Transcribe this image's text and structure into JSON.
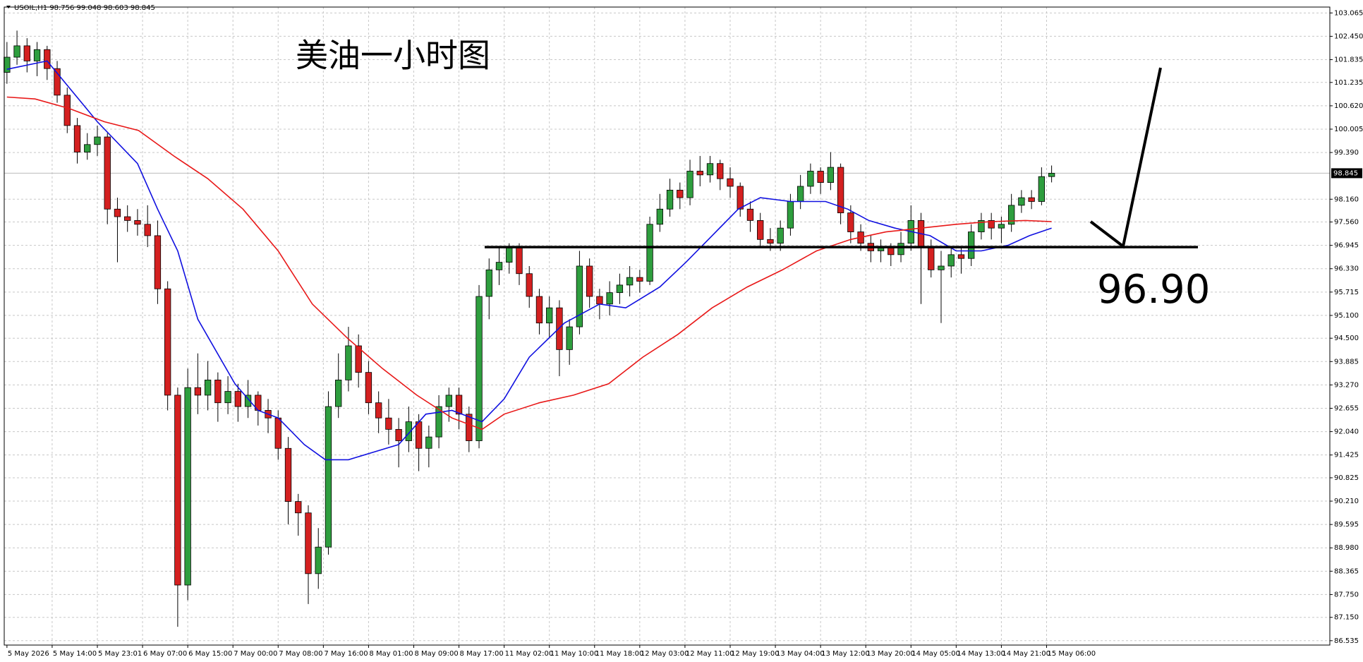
{
  "chart_data": {
    "type": "candlestick",
    "symbol": "USOIL,H1",
    "title": "美油一小时图",
    "annotation": {
      "value": 96.9,
      "label": "96.90"
    },
    "up_color": "#2e9e3e",
    "down_color": "#d42020",
    "grid": true,
    "candles": [
      [
        101.5,
        102.3,
        101.2,
        101.9
      ],
      [
        101.9,
        102.6,
        101.7,
        102.2
      ],
      [
        102.2,
        102.4,
        101.5,
        101.8
      ],
      [
        101.8,
        102.3,
        101.4,
        102.1
      ],
      [
        102.1,
        102.2,
        101.3,
        101.6
      ],
      [
        101.6,
        101.8,
        100.7,
        100.9
      ],
      [
        100.9,
        101.1,
        99.9,
        100.1
      ],
      [
        100.1,
        100.3,
        99.1,
        99.4
      ],
      [
        99.4,
        99.9,
        99.2,
        99.6
      ],
      [
        99.6,
        100.1,
        99.3,
        99.8
      ],
      [
        99.8,
        99.9,
        97.5,
        97.9
      ],
      [
        97.9,
        98.2,
        96.5,
        97.7
      ],
      [
        97.7,
        98.0,
        97.3,
        97.6
      ],
      [
        97.6,
        97.9,
        97.2,
        97.5
      ],
      [
        97.5,
        98.0,
        96.9,
        97.2
      ],
      [
        97.2,
        97.6,
        95.4,
        95.8
      ],
      [
        95.8,
        96.0,
        92.6,
        93.0
      ],
      [
        93.0,
        93.2,
        86.9,
        88.0
      ],
      [
        88.0,
        93.7,
        87.6,
        93.2
      ],
      [
        93.2,
        94.1,
        92.5,
        93.0
      ],
      [
        93.0,
        93.9,
        92.6,
        93.4
      ],
      [
        93.4,
        93.6,
        92.3,
        92.8
      ],
      [
        92.8,
        93.5,
        92.5,
        93.1
      ],
      [
        93.1,
        93.3,
        92.3,
        92.7
      ],
      [
        92.7,
        93.4,
        92.4,
        93.0
      ],
      [
        93.0,
        93.1,
        92.2,
        92.6
      ],
      [
        92.6,
        92.9,
        92.0,
        92.4
      ],
      [
        92.4,
        92.6,
        91.3,
        91.6
      ],
      [
        91.6,
        91.9,
        89.6,
        90.2
      ],
      [
        90.2,
        90.4,
        89.3,
        89.9
      ],
      [
        89.9,
        90.1,
        87.5,
        88.3
      ],
      [
        88.3,
        89.5,
        87.9,
        89.0
      ],
      [
        89.0,
        93.1,
        88.8,
        92.7
      ],
      [
        92.7,
        94.1,
        92.4,
        93.4
      ],
      [
        93.4,
        94.8,
        93.1,
        94.3
      ],
      [
        94.3,
        94.6,
        93.2,
        93.6
      ],
      [
        93.6,
        93.9,
        92.5,
        92.8
      ],
      [
        92.8,
        93.1,
        92.0,
        92.4
      ],
      [
        92.4,
        92.9,
        91.7,
        92.1
      ],
      [
        92.1,
        92.4,
        91.1,
        91.8
      ],
      [
        91.8,
        92.7,
        91.5,
        92.3
      ],
      [
        92.3,
        92.5,
        91.0,
        91.6
      ],
      [
        91.6,
        92.2,
        91.1,
        91.9
      ],
      [
        91.9,
        93.0,
        91.6,
        92.7
      ],
      [
        92.7,
        93.2,
        92.3,
        93.0
      ],
      [
        93.0,
        93.2,
        92.1,
        92.5
      ],
      [
        92.5,
        92.7,
        91.5,
        91.8
      ],
      [
        91.8,
        95.9,
        91.6,
        95.6
      ],
      [
        95.6,
        96.6,
        95.0,
        96.3
      ],
      [
        96.3,
        96.9,
        95.9,
        96.5
      ],
      [
        96.5,
        97.0,
        96.2,
        96.9
      ],
      [
        96.9,
        97.0,
        95.9,
        96.2
      ],
      [
        96.2,
        96.4,
        95.3,
        95.6
      ],
      [
        95.6,
        95.8,
        94.6,
        94.9
      ],
      [
        94.9,
        95.6,
        94.5,
        95.3
      ],
      [
        95.3,
        95.5,
        93.5,
        94.2
      ],
      [
        94.2,
        95.0,
        93.8,
        94.8
      ],
      [
        94.8,
        96.8,
        94.6,
        96.4
      ],
      [
        96.4,
        96.6,
        95.3,
        95.6
      ],
      [
        95.6,
        95.8,
        95.0,
        95.4
      ],
      [
        95.4,
        96.0,
        95.1,
        95.7
      ],
      [
        95.7,
        96.2,
        95.4,
        95.9
      ],
      [
        95.9,
        96.4,
        95.6,
        96.1
      ],
      [
        96.1,
        96.3,
        95.7,
        96.0
      ],
      [
        96.0,
        97.7,
        95.9,
        97.5
      ],
      [
        97.5,
        98.3,
        97.3,
        97.9
      ],
      [
        97.9,
        98.7,
        97.7,
        98.4
      ],
      [
        98.4,
        98.6,
        97.9,
        98.2
      ],
      [
        98.2,
        99.2,
        98.0,
        98.9
      ],
      [
        98.9,
        99.3,
        98.5,
        98.8
      ],
      [
        98.8,
        99.3,
        98.6,
        99.1
      ],
      [
        99.1,
        99.2,
        98.4,
        98.7
      ],
      [
        98.7,
        99.0,
        98.2,
        98.5
      ],
      [
        98.5,
        98.6,
        97.7,
        97.9
      ],
      [
        97.9,
        98.1,
        97.3,
        97.6
      ],
      [
        97.6,
        97.8,
        96.9,
        97.1
      ],
      [
        97.1,
        97.4,
        96.8,
        97.0
      ],
      [
        97.0,
        97.6,
        96.8,
        97.4
      ],
      [
        97.4,
        98.3,
        97.2,
        98.1
      ],
      [
        98.1,
        98.8,
        97.9,
        98.5
      ],
      [
        98.5,
        99.1,
        98.3,
        98.9
      ],
      [
        98.9,
        99.0,
        98.3,
        98.6
      ],
      [
        98.6,
        99.4,
        98.4,
        99.0
      ],
      [
        99.0,
        99.1,
        97.5,
        97.8
      ],
      [
        97.8,
        98.0,
        97.0,
        97.3
      ],
      [
        97.3,
        97.5,
        96.8,
        97.0
      ],
      [
        97.0,
        97.2,
        96.5,
        96.8
      ],
      [
        96.8,
        97.1,
        96.5,
        96.9
      ],
      [
        96.9,
        97.0,
        96.4,
        96.7
      ],
      [
        96.7,
        97.3,
        96.5,
        97.0
      ],
      [
        97.0,
        98.0,
        96.8,
        97.6
      ],
      [
        97.6,
        97.8,
        95.4,
        96.9
      ],
      [
        96.9,
        97.1,
        96.1,
        96.3
      ],
      [
        96.3,
        96.8,
        94.9,
        96.4
      ],
      [
        96.4,
        96.9,
        96.1,
        96.7
      ],
      [
        96.7,
        96.9,
        96.2,
        96.6
      ],
      [
        96.6,
        97.5,
        96.4,
        97.3
      ],
      [
        97.3,
        97.8,
        97.1,
        97.6
      ],
      [
        97.6,
        97.8,
        97.1,
        97.4
      ],
      [
        97.4,
        97.7,
        97.0,
        97.5
      ],
      [
        97.5,
        98.3,
        97.3,
        98.0
      ],
      [
        98.0,
        98.4,
        97.8,
        98.2
      ],
      [
        98.2,
        98.4,
        97.9,
        98.1
      ],
      [
        98.1,
        99.0,
        98.0,
        98.756
      ],
      [
        98.756,
        99.048,
        98.603,
        98.845
      ]
    ],
    "series": [
      {
        "color": "#1010e0",
        "x": [
          0,
          4,
          9,
          13,
          15,
          17,
          19,
          22.7,
          25,
          27,
          29.6,
          31.7,
          34,
          36.5,
          39,
          41.7,
          44.3,
          47.3,
          49.5,
          52,
          55.5,
          59,
          61.6,
          65,
          67.6,
          70.2,
          72.8,
          75,
          78,
          81.5,
          83.7,
          85.8,
          88.4,
          91.9,
          94.5,
          97,
          99.7,
          101.8,
          104
        ],
        "values": [
          101.58,
          101.8,
          100.2,
          99.1,
          97.9,
          96.8,
          95.0,
          93.3,
          92.6,
          92.4,
          91.7,
          91.3,
          91.3,
          91.5,
          91.7,
          92.5,
          92.6,
          92.3,
          92.9,
          94.0,
          94.9,
          95.4,
          95.3,
          95.85,
          96.5,
          97.2,
          97.9,
          98.2,
          98.1,
          98.1,
          97.9,
          97.6,
          97.4,
          97.2,
          96.8,
          96.8,
          96.95,
          97.2,
          97.4
        ]
      },
      {
        "color": "#e81818",
        "x": [
          0,
          2.8,
          6.2,
          9.7,
          13.1,
          16.6,
          20,
          23.5,
          27,
          30.4,
          33.9,
          37.4,
          40.8,
          44.3,
          47.3,
          49.5,
          53,
          56.4,
          59.9,
          63.3,
          66.8,
          70.2,
          73.7,
          77.2,
          80.6,
          84,
          87.5,
          91,
          94.5,
          97.9,
          101.4,
          104
        ],
        "values": [
          100.85,
          100.8,
          100.55,
          100.2,
          99.97,
          99.3,
          98.7,
          97.9,
          96.8,
          95.4,
          94.5,
          93.7,
          93.0,
          92.4,
          92.1,
          92.5,
          92.8,
          93.0,
          93.3,
          94.0,
          94.6,
          95.3,
          95.85,
          96.3,
          96.8,
          97.1,
          97.3,
          97.4,
          97.5,
          97.57,
          97.6,
          97.57
        ]
      }
    ],
    "xlim": [
      -0.27,
      131.7
    ],
    "xticks": [
      {
        "value": 0,
        "label": "5 May 2026"
      },
      {
        "value": 4.5,
        "label": "5 May 14:00"
      },
      {
        "value": 9,
        "label": "5 May 23:01"
      },
      {
        "value": 13.5,
        "label": "6 May 07:00"
      },
      {
        "value": 18,
        "label": "6 May 15:00"
      },
      {
        "value": 22.5,
        "label": "7 May 00:00"
      },
      {
        "value": 27,
        "label": "7 May 08:00"
      },
      {
        "value": 31.5,
        "label": "7 May 16:00"
      },
      {
        "value": 36,
        "label": "8 May 01:00"
      },
      {
        "value": 40.5,
        "label": "8 May 09:00"
      },
      {
        "value": 45,
        "label": "8 May 17:00"
      },
      {
        "value": 49.5,
        "label": "11 May 02:00"
      },
      {
        "value": 54,
        "label": "11 May 10:00"
      },
      {
        "value": 58.5,
        "label": "11 May 18:00"
      },
      {
        "value": 63,
        "label": "12 May 03:00"
      },
      {
        "value": 67.5,
        "label": "12 May 11:00"
      },
      {
        "value": 72,
        "label": "12 May 19:00"
      },
      {
        "value": 76.5,
        "label": "13 May 04:00"
      },
      {
        "value": 81,
        "label": "13 May 12:00"
      },
      {
        "value": 85.5,
        "label": "13 May 20:00"
      },
      {
        "value": 90,
        "label": "14 May 05:00"
      },
      {
        "value": 94.5,
        "label": "14 May 13:00"
      },
      {
        "value": 99,
        "label": "14 May 21:00"
      },
      {
        "value": 103.5,
        "label": "15 May 06:00"
      }
    ],
    "ylim": [
      86.42,
      103.22
    ],
    "yticks": [
      103.065,
      {
        "value": 102.45,
        "label": "102.450"
      },
      101.835,
      101.235,
      {
        "value": 100.62,
        "label": "100.620"
      },
      100.005,
      {
        "value": 99.39,
        "label": "99.390"
      },
      {
        "value": 98.16,
        "label": "98.160"
      },
      {
        "value": 97.56,
        "label": "97.560"
      },
      96.945,
      {
        "value": 96.33,
        "label": "96.330"
      },
      95.715,
      {
        "value": 95.1,
        "label": "95.100"
      },
      {
        "value": 94.5,
        "label": "94.500"
      },
      93.885,
      {
        "value": 93.27,
        "label": "93.270"
      },
      92.655,
      {
        "value": 92.04,
        "label": "92.040"
      },
      91.425,
      90.825,
      {
        "value": 90.21,
        "label": "90.210"
      },
      89.595,
      {
        "value": 88.98,
        "label": "88.980"
      },
      88.365,
      {
        "value": 87.75,
        "label": "87.750"
      },
      {
        "value": 87.15,
        "label": "87.150"
      },
      86.535
    ]
  }
}
